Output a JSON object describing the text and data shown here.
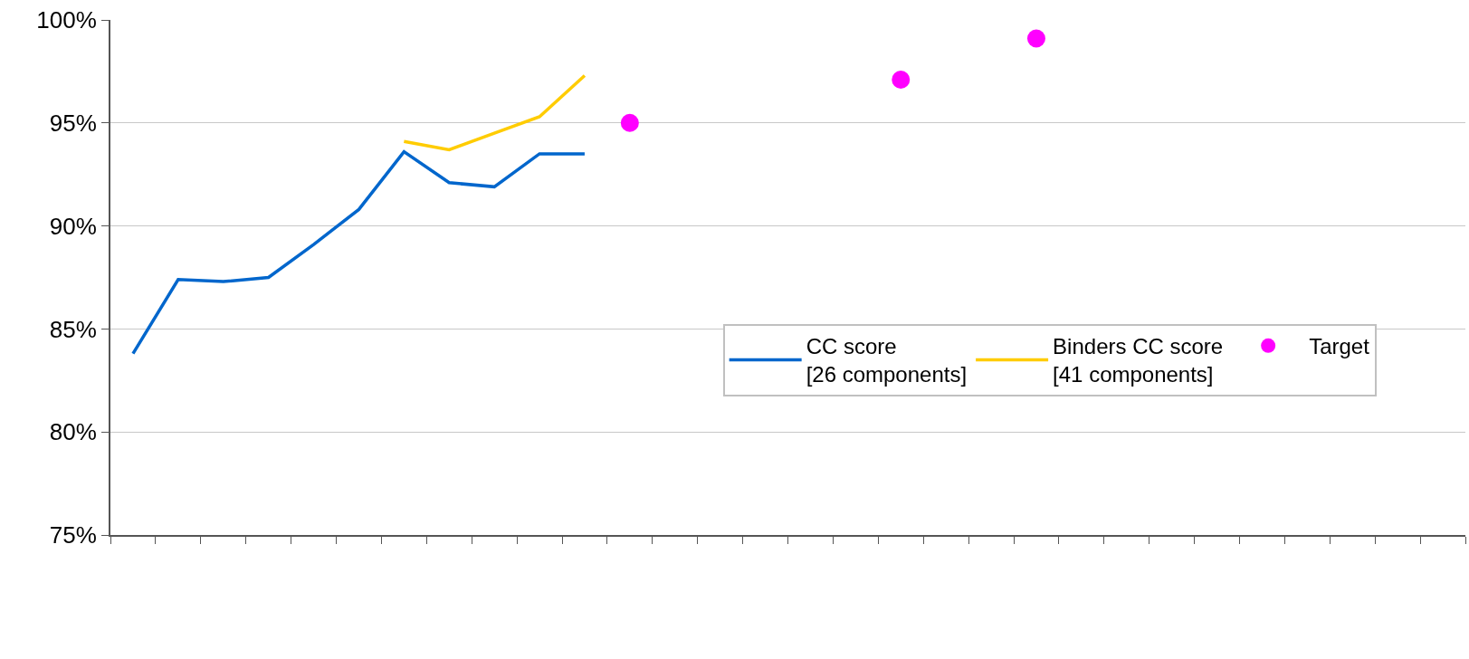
{
  "chart_data": {
    "type": "line",
    "categories": [
      null,
      null,
      null,
      null,
      null,
      null,
      null,
      null,
      null,
      null,
      null,
      null,
      null,
      null,
      null,
      null,
      null,
      null,
      null,
      null,
      null,
      null,
      null,
      null,
      null,
      null,
      null,
      null,
      null,
      null
    ],
    "series": [
      {
        "name": "CC score\n[26 components]",
        "color": "#0066cc",
        "values": [
          83.8,
          87.4,
          87.3,
          87.5,
          89.1,
          90.8,
          93.6,
          92.1,
          91.9,
          93.5,
          93.5,
          null,
          null,
          null,
          null,
          null,
          null,
          null,
          null,
          null,
          null,
          null,
          null,
          null,
          null,
          null,
          null,
          null,
          null,
          null
        ]
      },
      {
        "name": "Binders CC score\n[41 components]",
        "color": "#ffcc00",
        "values": [
          null,
          null,
          null,
          null,
          null,
          null,
          94.1,
          93.7,
          94.5,
          95.3,
          97.3,
          null,
          null,
          null,
          null,
          null,
          null,
          null,
          null,
          null,
          null,
          null,
          null,
          null,
          null,
          null,
          null,
          null,
          null,
          null
        ]
      },
      {
        "name": "Target",
        "type": "scatter",
        "marker": "circle",
        "color": "#ff00ff",
        "values": [
          null,
          null,
          null,
          null,
          null,
          null,
          null,
          null,
          null,
          null,
          null,
          95.0,
          null,
          null,
          null,
          null,
          null,
          97.1,
          null,
          null,
          99.1,
          null,
          null,
          null,
          null,
          null,
          null,
          null,
          null,
          null
        ]
      }
    ],
    "ylim": [
      75,
      100
    ],
    "yticks": [
      {
        "value": 75,
        "label": "75%"
      },
      {
        "value": 80,
        "label": "80%"
      },
      {
        "value": 85,
        "label": "85%"
      },
      {
        "value": 90,
        "label": "90%"
      },
      {
        "value": 95,
        "label": "95%"
      },
      {
        "value": 100,
        "label": "100%"
      }
    ],
    "grid": "y",
    "legend": "bottom right",
    "tick_labels": "y",
    "line_style": "solid",
    "marker": "none"
  }
}
